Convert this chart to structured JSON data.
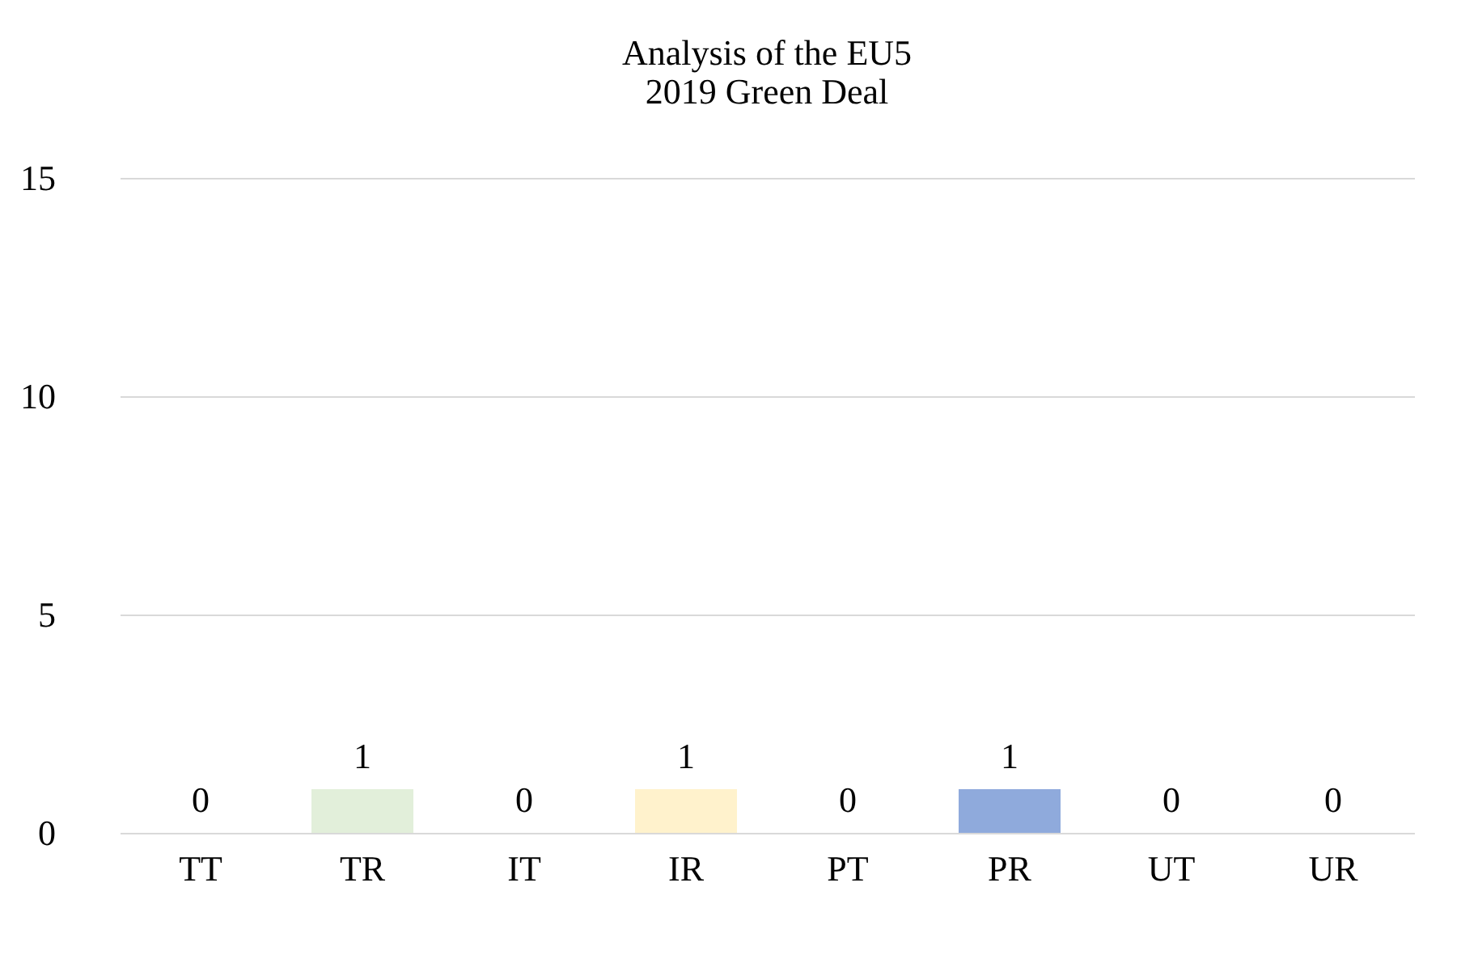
{
  "chart_data": {
    "type": "bar",
    "title": "Analysis of the EU5\n2019 Green Deal",
    "categories": [
      "TT",
      "TR",
      "IT",
      "IR",
      "PT",
      "PR",
      "UT",
      "UR"
    ],
    "values": [
      0,
      1,
      0,
      1,
      0,
      1,
      0,
      0
    ],
    "colors": [
      "#e2efda",
      "#e2efda",
      "#fff2cc",
      "#fff2cc",
      "#8faadc",
      "#8faadc",
      "#d9d9d9",
      "#d9d9d9"
    ],
    "ylim": [
      0,
      15
    ],
    "yticks": [
      0,
      5,
      10,
      15
    ],
    "grid": "y",
    "data_labels": true
  }
}
